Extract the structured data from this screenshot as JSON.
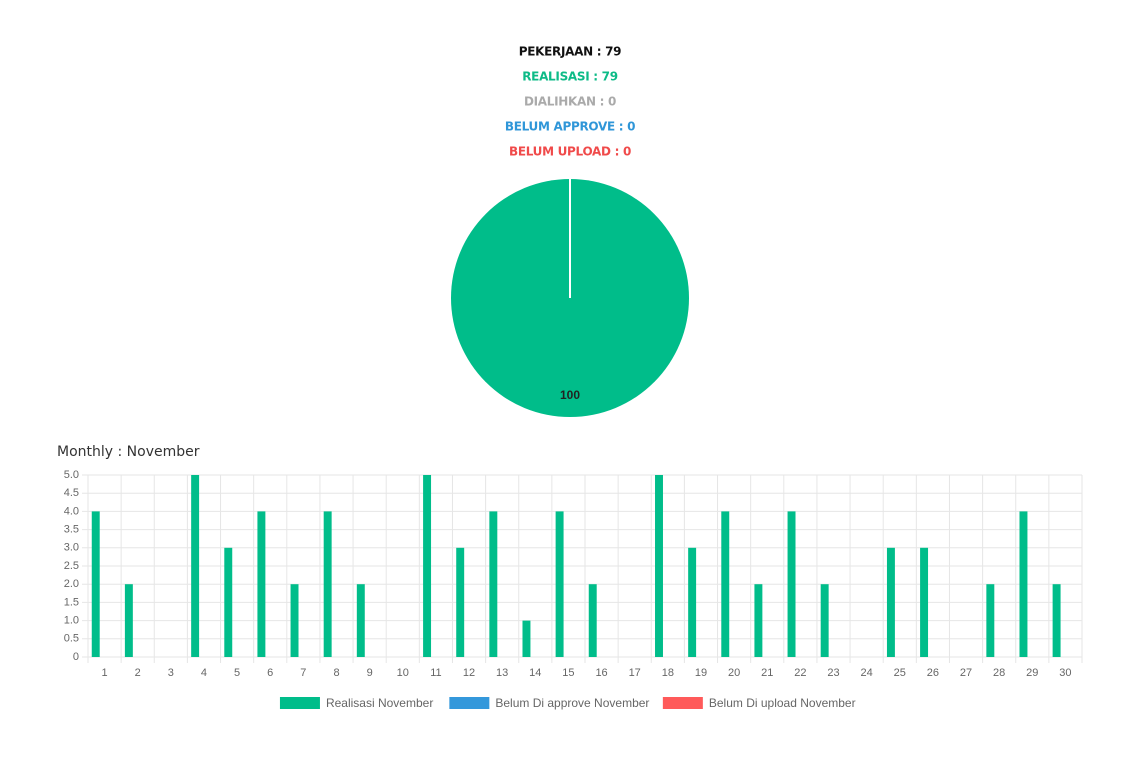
{
  "chart_data": [
    {
      "type": "pie",
      "title_lines": [
        "PEKERJAAN : 79",
        "REALISASI : 79",
        "DIALIHKAN : 0",
        "BELUM APPROVE : 0",
        "BELUM UPLOAD : 0"
      ],
      "title_colors": [
        "#111111",
        "#0dbb87",
        "#aaaaaa",
        "#2f96d8",
        "#f04a4a"
      ],
      "values": [
        100
      ],
      "color": "#00bd8a"
    },
    {
      "type": "bar",
      "title": "Monthly : November",
      "categories": [
        "1",
        "2",
        "3",
        "4",
        "5",
        "6",
        "7",
        "8",
        "9",
        "10",
        "11",
        "12",
        "13",
        "14",
        "15",
        "16",
        "17",
        "18",
        "19",
        "20",
        "21",
        "22",
        "23",
        "24",
        "25",
        "26",
        "27",
        "28",
        "29",
        "30"
      ],
      "series": [
        {
          "name": "Realisasi November",
          "color": "#00bd8a",
          "values": [
            4,
            2,
            0,
            5,
            3,
            4,
            2,
            4,
            2,
            0,
            5,
            3,
            4,
            1,
            4,
            2,
            0,
            5,
            3,
            4,
            2,
            4,
            2,
            0,
            3,
            3,
            0,
            2,
            4,
            2
          ]
        },
        {
          "name": "Belum Di approve November",
          "color": "#3498db",
          "values": [
            0,
            0,
            0,
            0,
            0,
            0,
            0,
            0,
            0,
            0,
            0,
            0,
            0,
            0,
            0,
            0,
            0,
            0,
            0,
            0,
            0,
            0,
            0,
            0,
            0,
            0,
            0,
            0,
            0,
            0
          ]
        },
        {
          "name": "Belum Di upload November",
          "color": "#ff5a5a",
          "values": [
            0,
            0,
            0,
            0,
            0,
            0,
            0,
            0,
            0,
            0,
            0,
            0,
            0,
            0,
            0,
            0,
            0,
            0,
            0,
            0,
            0,
            0,
            0,
            0,
            0,
            0,
            0,
            0,
            0,
            0
          ]
        }
      ],
      "ylim": [
        0,
        5
      ],
      "yticks": [
        0,
        0.5,
        {
          "value": 1,
          "label": "1.0"
        },
        1.5,
        {
          "value": 2,
          "label": "2.0"
        },
        2.5,
        {
          "value": 3,
          "label": "3.0"
        },
        3.5,
        {
          "value": 4,
          "label": "4.0"
        },
        4.5,
        {
          "value": 5,
          "label": "5.0"
        }
      ],
      "grid": true
    }
  ]
}
